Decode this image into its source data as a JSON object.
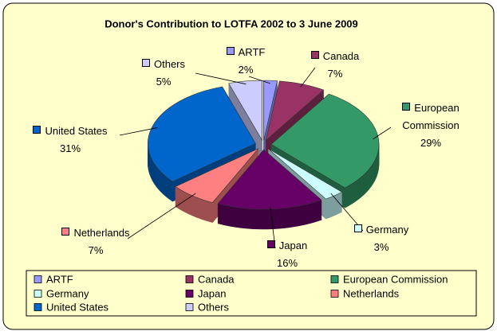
{
  "chart_data": {
    "type": "pie",
    "title": "Donor's Contribution to LOTFA 2002 to 3 June 2009",
    "categories": [
      "ARTF",
      "Canada",
      "European Commission",
      "Germany",
      "Japan",
      "Netherlands",
      "United States",
      "Others"
    ],
    "values": [
      2,
      7,
      29,
      3,
      16,
      7,
      31,
      5
    ],
    "value_labels": [
      "2%",
      "7%",
      "29%",
      "3%",
      "16%",
      "7%",
      "31%",
      "5%"
    ],
    "colors": [
      "#9999ff",
      "#993366",
      "#339966",
      "#ccffff",
      "#660066",
      "#ff8080",
      "#0066cc",
      "#ccccff"
    ],
    "legend": "bottom"
  }
}
